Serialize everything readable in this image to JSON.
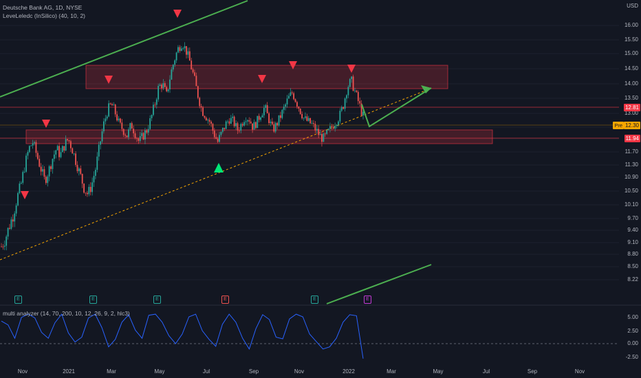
{
  "legend": {
    "title": "Deutsche Bank AG, 1D, NYSE",
    "indicator": "LeveLeledc (InSilico) (40, 10, 2)"
  },
  "subpane": {
    "label": "multi analyzer (14, 70, 200, 10, 12, 26, 9, 2, hlc3)",
    "ticks": [
      "5.00",
      "2.50",
      "0.00",
      "-2.50"
    ]
  },
  "price_axis": {
    "currency": "USD",
    "ticks": [
      "16.00",
      "15.50",
      "15.00",
      "14.50",
      "14.00",
      "13.50",
      "13.00",
      "12.50",
      "12.10",
      "11.70",
      "11.30",
      "10.90",
      "10.50",
      "10.10",
      "9.70",
      "9.40",
      "9.10",
      "8.80",
      "8.50",
      "8.22"
    ],
    "last_price": "12.81",
    "pre_label": "Pre",
    "pre_price": "12.30",
    "support_price": "11.94"
  },
  "time_axis": [
    "Nov",
    "2021",
    "Mar",
    "May",
    "Jul",
    "Sep",
    "Nov",
    "2022",
    "Mar",
    "May",
    "Jul",
    "Sep",
    "Nov"
  ],
  "earnings_markers": [
    {
      "label": "E",
      "kind": "green"
    },
    {
      "label": "E",
      "kind": "green"
    },
    {
      "label": "E",
      "kind": "green"
    },
    {
      "label": "E",
      "kind": "red"
    },
    {
      "label": "E",
      "kind": "green"
    },
    {
      "label": "E",
      "kind": "purple"
    }
  ],
  "colors": {
    "background": "#131722",
    "up": "#26a69a",
    "down": "#ef5350",
    "trend": "#4caf50",
    "zone": "#f23645",
    "dashed": "#f7a600",
    "oscillator": "#2962ff",
    "last_price_badge": "#f23645"
  },
  "chart_data": {
    "type": "candlestick",
    "title": "Deutsche Bank AG, 1D, NYSE",
    "x_range": [
      "2020-10-15",
      "2022-12-01"
    ],
    "y_range": [
      8.1,
      16.3
    ],
    "resistance_zone": [
      13.4,
      14.15
    ],
    "support_zone": [
      11.78,
      12.2
    ],
    "horizontal_lines": [
      12.81,
      11.94
    ],
    "closes": [
      9.0,
      9.2,
      9.5,
      9.8,
      10.3,
      10.7,
      11.3,
      11.8,
      12.0,
      11.6,
      11.2,
      10.8,
      11.1,
      11.5,
      11.8,
      11.6,
      11.9,
      12.1,
      11.8,
      11.4,
      11.0,
      10.6,
      10.4,
      10.7,
      11.2,
      11.9,
      12.6,
      13.1,
      13.3,
      13.0,
      12.6,
      12.4,
      12.2,
      12.6,
      12.3,
      12.0,
      12.2,
      12.4,
      12.8,
      13.3,
      13.9,
      14.0,
      13.6,
      14.3,
      14.8,
      15.2,
      15.4,
      15.1,
      14.7,
      14.2,
      13.6,
      13.1,
      12.9,
      12.7,
      12.3,
      12.0,
      12.3,
      12.6,
      12.8,
      12.7,
      12.4,
      12.6,
      12.9,
      12.8,
      12.5,
      12.7,
      13.0,
      13.2,
      12.8,
      12.4,
      12.6,
      12.9,
      13.2,
      13.5,
      13.7,
      13.4,
      13.1,
      12.8,
      12.7,
      12.6,
      12.4,
      12.2,
      12.1,
      12.3,
      12.5,
      12.7,
      12.9,
      13.3,
      13.9,
      14.1,
      13.7,
      13.3,
      12.9
    ],
    "high_markers": [
      "2020-11-25",
      "2021-03-05",
      "2021-05-25",
      "2021-09-01",
      "2021-10-25",
      "2021-12-30"
    ],
    "low_markers": [
      "2021-07-19"
    ],
    "oscillator": [
      4.2,
      3.5,
      1.0,
      4.9,
      5.5,
      4.8,
      2.1,
      1.0,
      3.9,
      5.5,
      2.0,
      0.3,
      1.2,
      4.8,
      5.5,
      3.0,
      -0.6,
      0.8,
      4.0,
      5.4,
      2.5,
      1.0,
      5.3,
      5.5,
      4.0,
      1.5,
      0.0,
      1.8,
      5.0,
      5.5,
      2.4,
      0.8,
      -0.5,
      3.6,
      5.5,
      4.0,
      1.0,
      -1.0,
      2.8,
      5.4,
      4.5,
      1.2,
      0.9,
      4.6,
      5.5,
      5.0,
      1.8,
      0.4,
      -1.0,
      -0.6,
      1.0,
      4.0,
      5.4,
      5.2,
      -2.8
    ]
  }
}
